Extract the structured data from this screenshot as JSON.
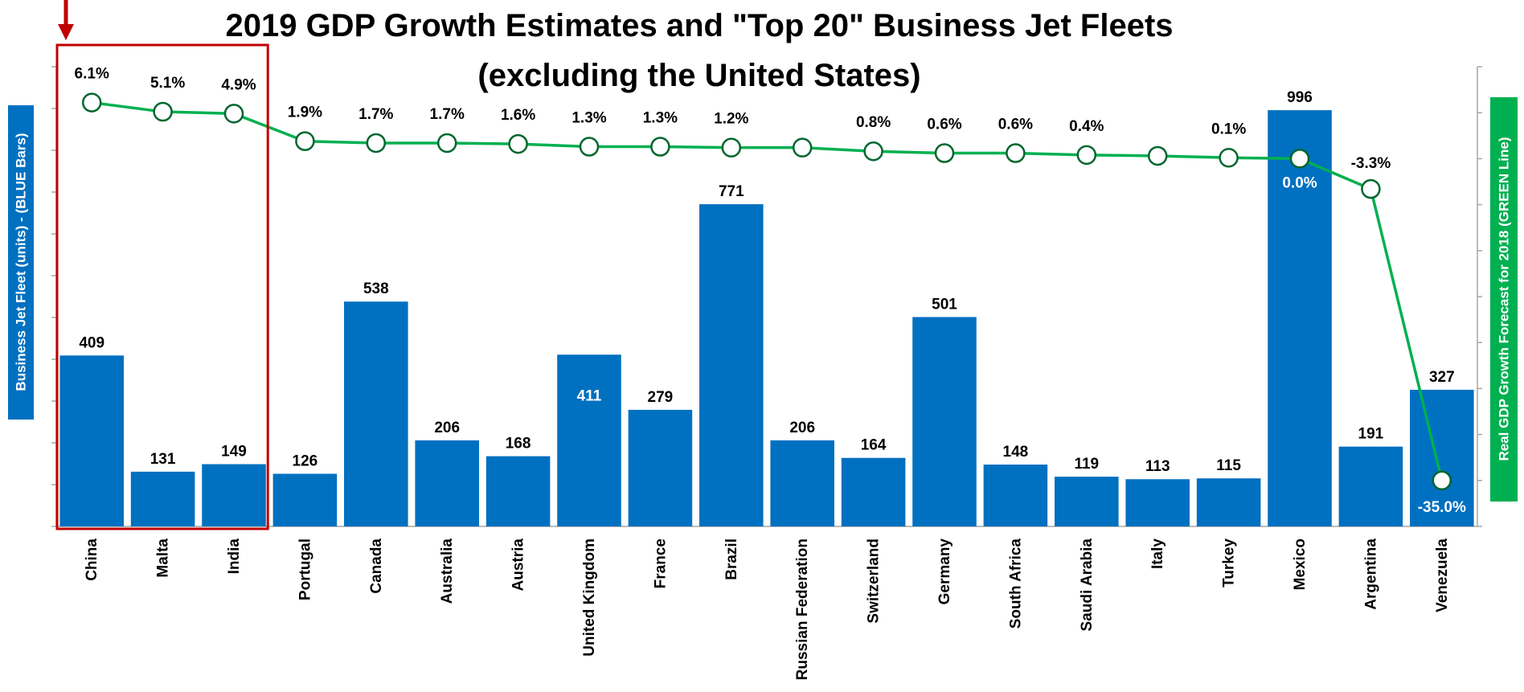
{
  "colors": {
    "bar": "#0070C0",
    "line": "#00B050",
    "marker_fill": "#ffffff",
    "marker_stroke": "#00662e",
    "highlight_box": "#C00000",
    "arrow": "#C00000",
    "axis": "#a6a6a6"
  },
  "chart_data": {
    "type": "bar",
    "title": "2019 GDP Growth Estimates and \"Top 20\" Business Jet Fleets",
    "subtitle": "(excluding the United States)",
    "ylabel": "Business Jet Fleet (units) - (BLUE Bars)",
    "y2label": "Real GDP Growth Forecast for 2018 (GREEN Line)",
    "ylim": [
      0,
      1100
    ],
    "y2lim": [
      -40,
      10
    ],
    "grid": false,
    "categories": [
      "China",
      "Malta",
      "India",
      "Portugal",
      "Canada",
      "Australia",
      "Austria",
      "United Kingdom",
      "France",
      "Brazil",
      "Russian Federation",
      "Switzerland",
      "Germany",
      "South Africa",
      "Saudi Arabia",
      "Italy",
      "Turkey",
      "Mexico",
      "Argentina",
      "Venezuela"
    ],
    "series": [
      {
        "type": "bar",
        "axis": "left",
        "values": [
          409,
          131,
          149,
          126,
          538,
          206,
          168,
          411,
          279,
          771,
          206,
          164,
          501,
          148,
          119,
          113,
          115,
          996,
          191,
          327
        ],
        "value_labels": [
          "409",
          "131",
          "149",
          "126",
          "538",
          "206",
          "168",
          "411",
          "279",
          "771",
          "206",
          "164",
          "501",
          "148",
          "119",
          "113",
          "115",
          "996",
          "191",
          "327"
        ]
      },
      {
        "type": "line",
        "axis": "right",
        "values": [
          6.1,
          5.1,
          4.9,
          1.9,
          1.7,
          1.7,
          1.6,
          1.3,
          1.3,
          1.2,
          1.2,
          0.8,
          0.6,
          0.6,
          0.4,
          0.3,
          0.1,
          0.0,
          -3.3,
          -35.0
        ],
        "value_labels": [
          "6.1%",
          "5.1%",
          "4.9%",
          "1.9%",
          "1.7%",
          "1.7%",
          "1.6%",
          "1.3%",
          "1.3%",
          "1.2%",
          "",
          "0.8%",
          "0.6%",
          "0.6%",
          "0.4%",
          "",
          "0.1%",
          "0.0%",
          "-3.3%",
          "-35.0%"
        ]
      }
    ],
    "highlight": {
      "categories": [
        "China",
        "Malta",
        "India"
      ]
    }
  }
}
